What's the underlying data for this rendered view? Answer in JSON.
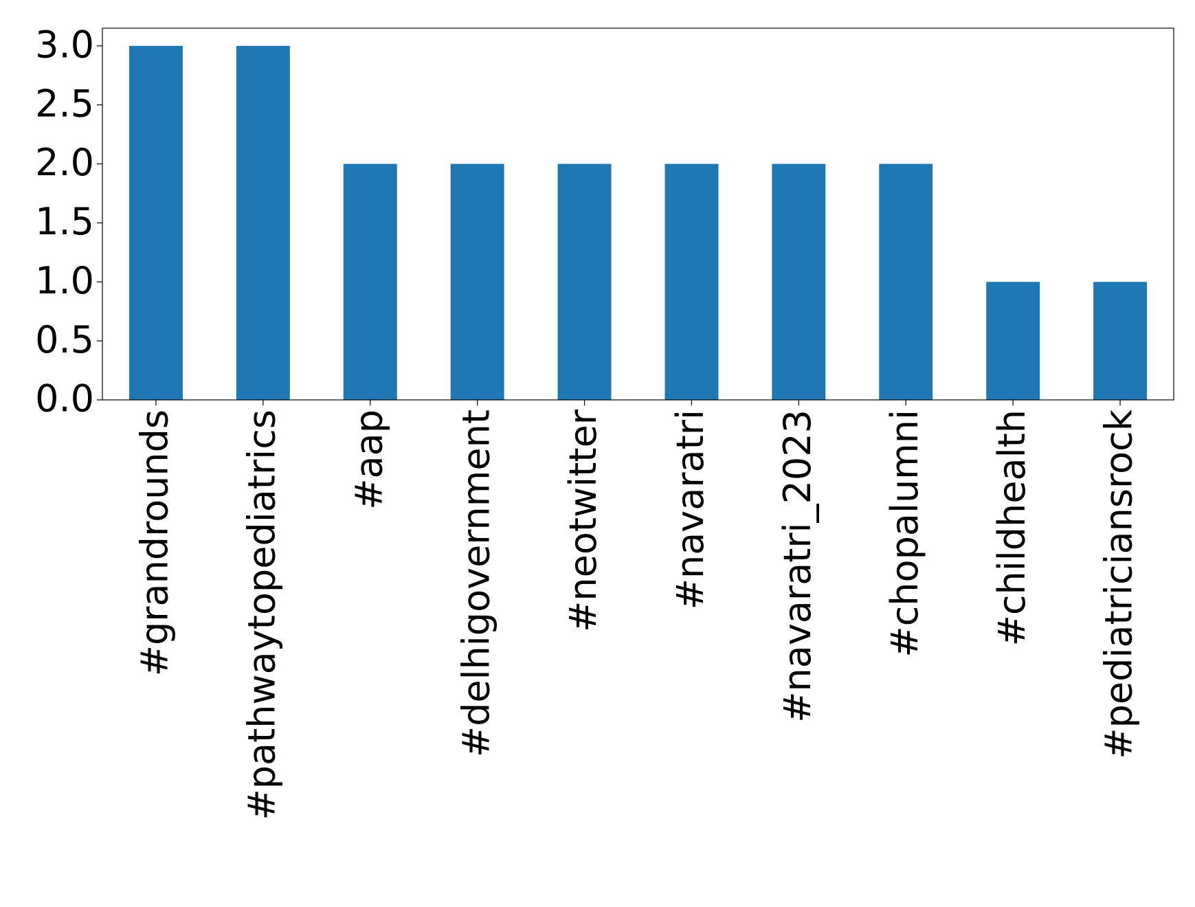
{
  "chart_data": {
    "type": "bar",
    "categories": [
      "#grandrounds",
      "#pathwaytopediatrics",
      "#aap",
      "#delhigovernment",
      "#neotwitter",
      "#navaratri",
      "#navaratri_2023",
      "#chopalumni",
      "#childhealth",
      "#pediatriciansrock"
    ],
    "values": [
      3,
      3,
      2,
      2,
      2,
      2,
      2,
      2,
      1,
      1
    ],
    "color": "#1f77b4",
    "ylim": [
      0,
      3.15
    ],
    "yticks": [
      {
        "value": 0,
        "label": "0.0"
      },
      {
        "value": 0.5,
        "label": "0.5"
      },
      {
        "value": 1,
        "label": "1.0"
      },
      {
        "value": 1.5,
        "label": "1.5"
      },
      {
        "value": 2,
        "label": "2.0"
      },
      {
        "value": 2.5,
        "label": "2.5"
      },
      {
        "value": 3,
        "label": "3.0"
      }
    ],
    "grid": false
  }
}
